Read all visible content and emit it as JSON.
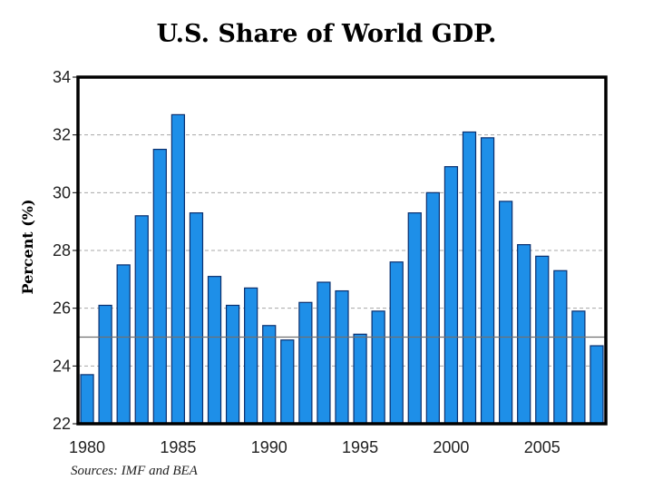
{
  "page": {
    "title": "U.S. Share of World GDP.",
    "source": "Sources: IMF and BEA"
  },
  "colors": {
    "bar_fill": "#1e8fe8",
    "bar_stroke": "#0a2f6e",
    "grid": "#a8a8a8",
    "frame": "#000000",
    "reference_line": "#707070"
  },
  "chart_data": {
    "type": "bar",
    "title": "U.S. Share of World GDP.",
    "xlabel": "",
    "ylabel": "Percent (%)",
    "ylim": [
      22,
      34
    ],
    "yticks": [
      22,
      24,
      26,
      28,
      30,
      32,
      34
    ],
    "xticks": [
      1980,
      1985,
      1990,
      1995,
      2000,
      2005
    ],
    "grid": true,
    "reference_line": 25,
    "categories": [
      1980,
      1981,
      1982,
      1983,
      1984,
      1985,
      1986,
      1987,
      1988,
      1989,
      1990,
      1991,
      1992,
      1993,
      1994,
      1995,
      1996,
      1997,
      1998,
      1999,
      2000,
      2001,
      2002,
      2003,
      2004,
      2005,
      2006,
      2007,
      2008
    ],
    "values": [
      23.7,
      26.1,
      27.5,
      29.2,
      31.5,
      32.7,
      29.3,
      27.1,
      26.1,
      26.7,
      25.4,
      24.9,
      26.2,
      26.9,
      26.6,
      25.1,
      25.9,
      27.6,
      29.3,
      30.0,
      30.9,
      32.1,
      31.9,
      29.7,
      28.2,
      27.8,
      27.3,
      25.9,
      24.7
    ],
    "source": "Sources: IMF and BEA"
  }
}
